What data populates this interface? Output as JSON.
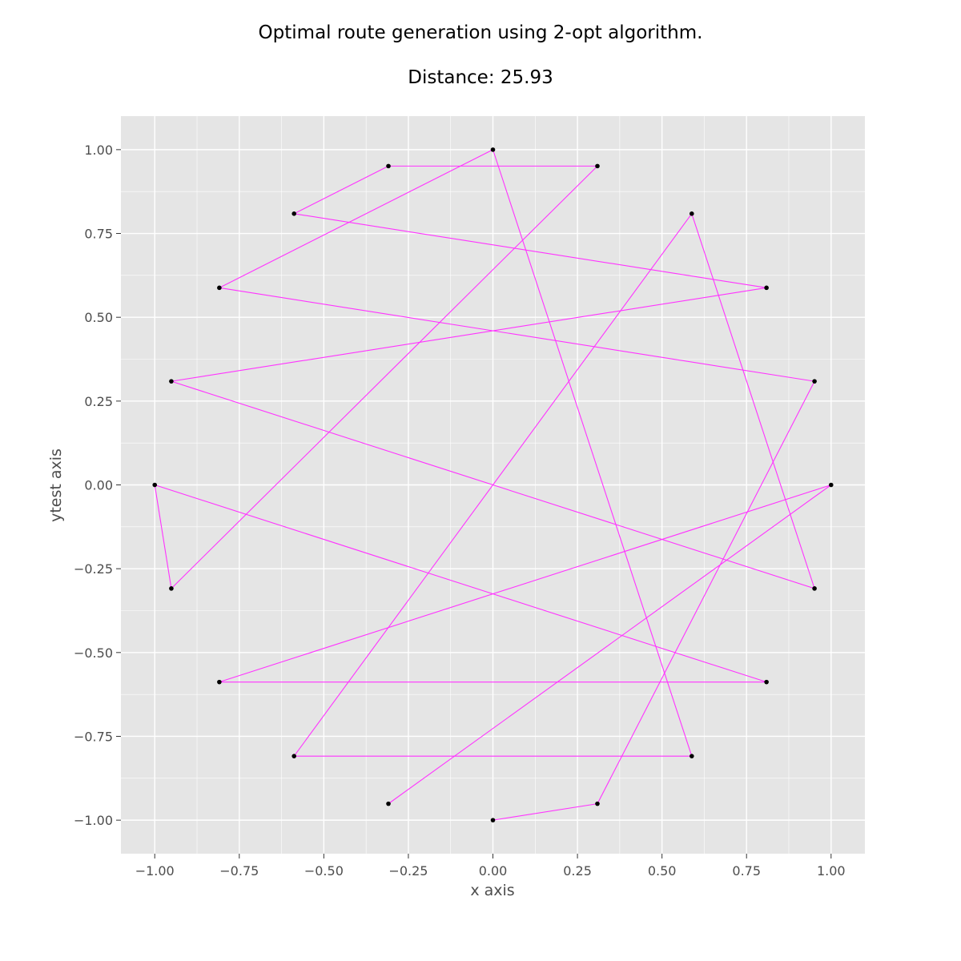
{
  "chart_data": {
    "type": "line",
    "title": "Optimal route generation using 2-opt algorithm.",
    "subtitle": "Distance: 25.93",
    "xlabel": "x axis",
    "ylabel": "ytest axis",
    "xlim": [
      -1.1,
      1.1
    ],
    "ylim": [
      -1.1,
      1.1
    ],
    "xticks": [
      -1.0,
      -0.75,
      -0.5,
      -0.25,
      0.0,
      0.25,
      0.5,
      0.75,
      1.0
    ],
    "yticks": [
      -1.0,
      -0.75,
      -0.5,
      -0.25,
      0.0,
      0.25,
      0.5,
      0.75,
      1.0
    ],
    "xtick_labels": [
      "−1.00",
      "−0.75",
      "−0.50",
      "−0.25",
      "0.00",
      "0.25",
      "0.50",
      "0.75",
      "1.00"
    ],
    "ytick_labels": [
      "−1.00",
      "−0.75",
      "−0.50",
      "−0.25",
      "0.00",
      "0.25",
      "0.50",
      "0.75",
      "1.00"
    ],
    "grid": true,
    "style": "ggplot",
    "colors": {
      "route": "#ff33ff",
      "points": "#000000",
      "panel": "#e5e5e5",
      "grid": "#ffffff"
    },
    "route": [
      {
        "x": 0.0,
        "y": -1.0
      },
      {
        "x": 0.309,
        "y": -0.951
      },
      {
        "x": 0.951,
        "y": 0.309
      },
      {
        "x": -0.809,
        "y": 0.588
      },
      {
        "x": 0.0,
        "y": 1.0
      },
      {
        "x": 0.588,
        "y": -0.809
      },
      {
        "x": -0.588,
        "y": -0.809
      },
      {
        "x": 0.588,
        "y": 0.809
      },
      {
        "x": 0.951,
        "y": -0.309
      },
      {
        "x": -0.951,
        "y": 0.309
      },
      {
        "x": 0.809,
        "y": 0.588
      },
      {
        "x": -0.588,
        "y": 0.809
      },
      {
        "x": -0.309,
        "y": 0.951
      },
      {
        "x": 0.309,
        "y": 0.951
      },
      {
        "x": -0.951,
        "y": -0.309
      },
      {
        "x": -1.0,
        "y": 0.0
      },
      {
        "x": 0.809,
        "y": -0.588
      },
      {
        "x": -0.809,
        "y": -0.588
      },
      {
        "x": 1.0,
        "y": 0.0
      },
      {
        "x": -0.309,
        "y": -0.951
      }
    ]
  }
}
